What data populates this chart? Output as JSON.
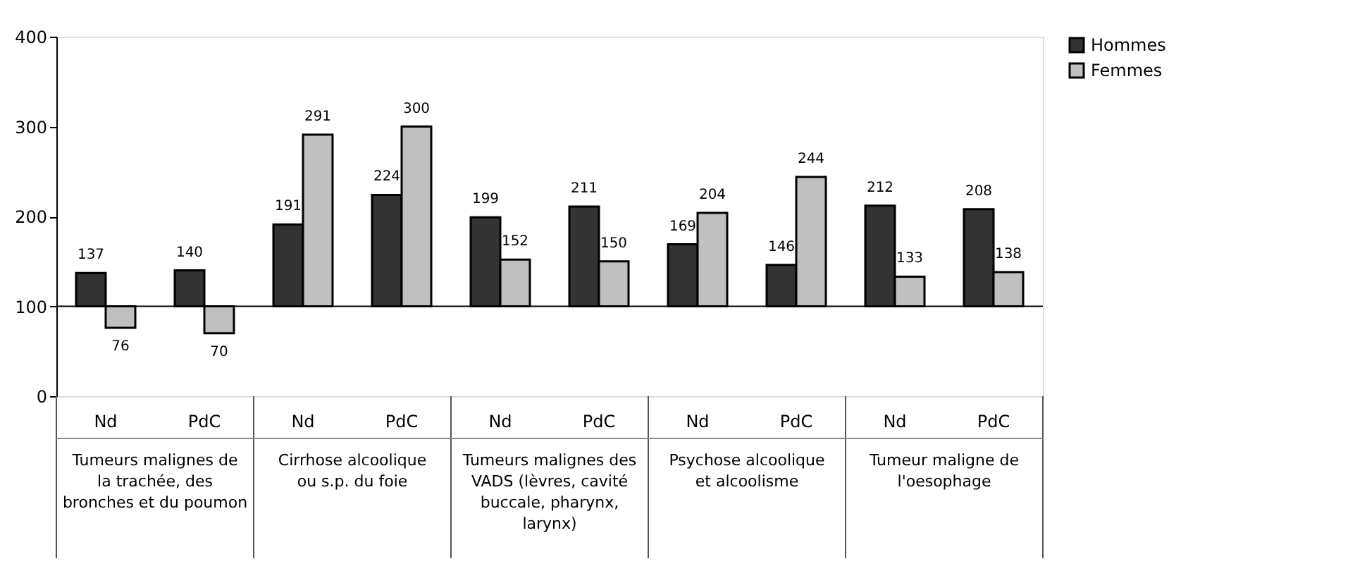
{
  "chart_data": {
    "type": "bar",
    "categories": [
      "Nd",
      "PdC",
      "Nd",
      "PdC",
      "Nd",
      "PdC",
      "Nd",
      "PdC",
      "Nd",
      "PdC"
    ],
    "series": [
      {
        "name": "Hommes",
        "color": "#333333",
        "base": [
          100,
          100,
          100,
          100,
          100,
          100,
          100,
          100,
          100,
          100
        ],
        "values": [
          37,
          40,
          91,
          124,
          99,
          111,
          69,
          46,
          112,
          108
        ],
        "value_labels": [
          "137",
          "140",
          "191",
          "224",
          "199",
          "211",
          "169",
          "146",
          "212",
          "208"
        ]
      },
      {
        "name": "Femmes",
        "color": "#c0c0c0",
        "base": [
          100,
          100,
          100,
          100,
          100,
          100,
          100,
          100,
          100,
          100
        ],
        "values": [
          -24,
          -30,
          191,
          200,
          52,
          50,
          104,
          144,
          33,
          38
        ],
        "value_labels": [
          "76",
          "70",
          "291",
          "300",
          "152",
          "150",
          "204",
          "244",
          "133",
          "138"
        ]
      }
    ],
    "annotations": [
      "Tumeurs malignes de la trachée, des bronches et du poumon",
      "Cirrhose alcoolique ou s.p. du foie",
      "Tumeurs malignes des VADS (lèvres, cavité buccale, pharynx, larynx)",
      "Psychose alcoolique et alcoolisme",
      "Tumeur maligne de l'oesophage"
    ],
    "ref_lines": [
      {
        "axis": "y",
        "value": 100,
        "color": "#000000"
      }
    ],
    "ylim": [
      0,
      400
    ],
    "yticks": [
      0,
      100,
      200,
      300,
      400
    ],
    "grid": false,
    "legend": "right"
  }
}
